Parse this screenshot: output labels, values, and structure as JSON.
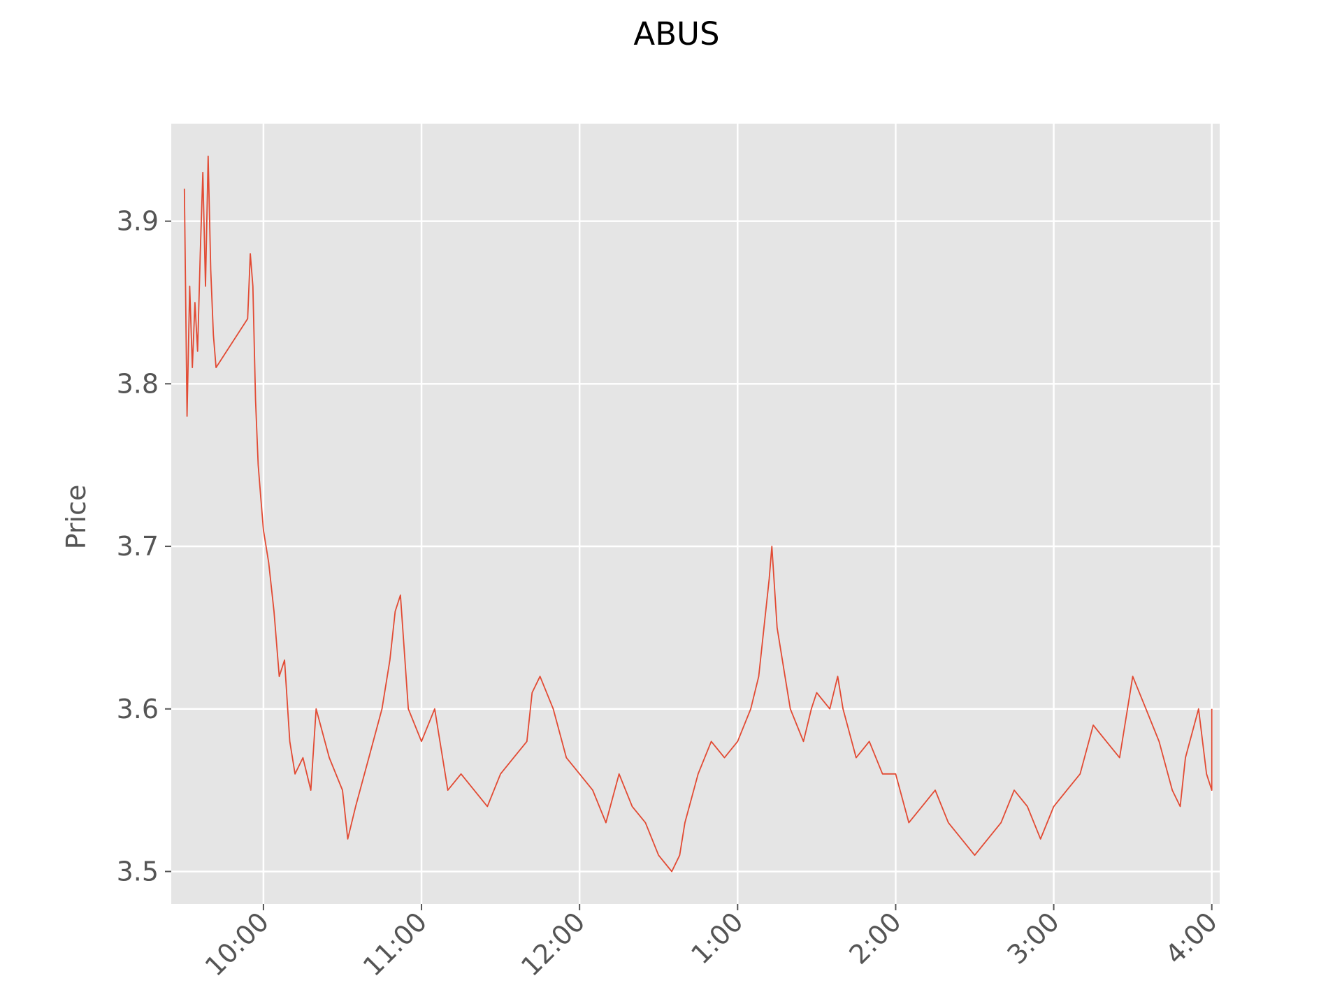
{
  "chart_data": {
    "type": "line",
    "title": "ABUS",
    "xlabel": "",
    "ylabel": "Price",
    "ylim": [
      3.48,
      3.96
    ],
    "xlim": [
      "9:25",
      "4:03"
    ],
    "grid": true,
    "y_ticks": [
      3.5,
      3.6,
      3.7,
      3.8,
      3.9
    ],
    "y_tick_labels": [
      "3.5",
      "3.6",
      "3.7",
      "3.8",
      "3.9"
    ],
    "x_ticks": [
      "10:00",
      "11:00",
      "12:00",
      "1:00",
      "2:00",
      "3:00",
      "4:00"
    ],
    "x_tick_labels": [
      "10:00",
      "11:00",
      "12:00",
      "1:00",
      "2:00",
      "3:00",
      "4:00"
    ],
    "series": [
      {
        "color": "#e24a33",
        "points": [
          [
            "9:30",
            3.92
          ],
          [
            "9:31",
            3.78
          ],
          [
            "9:32",
            3.86
          ],
          [
            "9:33",
            3.81
          ],
          [
            "9:34",
            3.85
          ],
          [
            "9:35",
            3.82
          ],
          [
            "9:36",
            3.88
          ],
          [
            "9:37",
            3.93
          ],
          [
            "9:38",
            3.86
          ],
          [
            "9:39",
            3.94
          ],
          [
            "9:40",
            3.87
          ],
          [
            "9:41",
            3.83
          ],
          [
            "9:42",
            3.81
          ],
          [
            "9:54",
            3.84
          ],
          [
            "9:55",
            3.88
          ],
          [
            "9:56",
            3.86
          ],
          [
            "9:57",
            3.79
          ],
          [
            "9:58",
            3.75
          ],
          [
            "9:59",
            3.73
          ],
          [
            "10:00",
            3.71
          ],
          [
            "10:02",
            3.69
          ],
          [
            "10:04",
            3.66
          ],
          [
            "10:06",
            3.62
          ],
          [
            "10:08",
            3.63
          ],
          [
            "10:10",
            3.58
          ],
          [
            "10:12",
            3.56
          ],
          [
            "10:15",
            3.57
          ],
          [
            "10:18",
            3.55
          ],
          [
            "10:20",
            3.6
          ],
          [
            "10:25",
            3.57
          ],
          [
            "10:30",
            3.55
          ],
          [
            "10:32",
            3.52
          ],
          [
            "10:35",
            3.54
          ],
          [
            "10:40",
            3.57
          ],
          [
            "10:45",
            3.6
          ],
          [
            "10:48",
            3.63
          ],
          [
            "10:50",
            3.66
          ],
          [
            "10:52",
            3.67
          ],
          [
            "10:55",
            3.6
          ],
          [
            "11:00",
            3.58
          ],
          [
            "11:05",
            3.6
          ],
          [
            "11:08",
            3.57
          ],
          [
            "11:10",
            3.55
          ],
          [
            "11:15",
            3.56
          ],
          [
            "11:20",
            3.55
          ],
          [
            "11:25",
            3.54
          ],
          [
            "11:30",
            3.56
          ],
          [
            "11:35",
            3.57
          ],
          [
            "11:40",
            3.58
          ],
          [
            "11:42",
            3.61
          ],
          [
            "11:45",
            3.62
          ],
          [
            "11:50",
            3.6
          ],
          [
            "11:55",
            3.57
          ],
          [
            "12:00",
            3.56
          ],
          [
            "12:05",
            3.55
          ],
          [
            "12:10",
            3.53
          ],
          [
            "12:15",
            3.56
          ],
          [
            "12:20",
            3.54
          ],
          [
            "12:25",
            3.53
          ],
          [
            "12:30",
            3.51
          ],
          [
            "12:35",
            3.5
          ],
          [
            "12:38",
            3.51
          ],
          [
            "12:40",
            3.53
          ],
          [
            "12:45",
            3.56
          ],
          [
            "12:50",
            3.58
          ],
          [
            "12:55",
            3.57
          ],
          [
            "1:00",
            3.58
          ],
          [
            "1:05",
            3.6
          ],
          [
            "1:08",
            3.62
          ],
          [
            "1:10",
            3.65
          ],
          [
            "1:12",
            3.68
          ],
          [
            "1:13",
            3.7
          ],
          [
            "1:15",
            3.65
          ],
          [
            "1:18",
            3.62
          ],
          [
            "1:20",
            3.6
          ],
          [
            "1:25",
            3.58
          ],
          [
            "1:28",
            3.6
          ],
          [
            "1:30",
            3.61
          ],
          [
            "1:35",
            3.6
          ],
          [
            "1:38",
            3.62
          ],
          [
            "1:40",
            3.6
          ],
          [
            "1:45",
            3.57
          ],
          [
            "1:50",
            3.58
          ],
          [
            "1:55",
            3.56
          ],
          [
            "2:00",
            3.56
          ],
          [
            "2:05",
            3.53
          ],
          [
            "2:10",
            3.54
          ],
          [
            "2:15",
            3.55
          ],
          [
            "2:20",
            3.53
          ],
          [
            "2:25",
            3.52
          ],
          [
            "2:30",
            3.51
          ],
          [
            "2:35",
            3.52
          ],
          [
            "2:40",
            3.53
          ],
          [
            "2:45",
            3.55
          ],
          [
            "2:50",
            3.54
          ],
          [
            "2:55",
            3.52
          ],
          [
            "3:00",
            3.54
          ],
          [
            "3:05",
            3.55
          ],
          [
            "3:10",
            3.56
          ],
          [
            "3:15",
            3.59
          ],
          [
            "3:20",
            3.58
          ],
          [
            "3:25",
            3.57
          ],
          [
            "3:28",
            3.6
          ],
          [
            "3:30",
            3.62
          ],
          [
            "3:35",
            3.6
          ],
          [
            "3:40",
            3.58
          ],
          [
            "3:45",
            3.55
          ],
          [
            "3:48",
            3.54
          ],
          [
            "3:50",
            3.57
          ],
          [
            "3:55",
            3.6
          ],
          [
            "3:58",
            3.56
          ],
          [
            "4:00",
            3.55
          ],
          [
            "4:00",
            3.6
          ]
        ]
      }
    ]
  }
}
